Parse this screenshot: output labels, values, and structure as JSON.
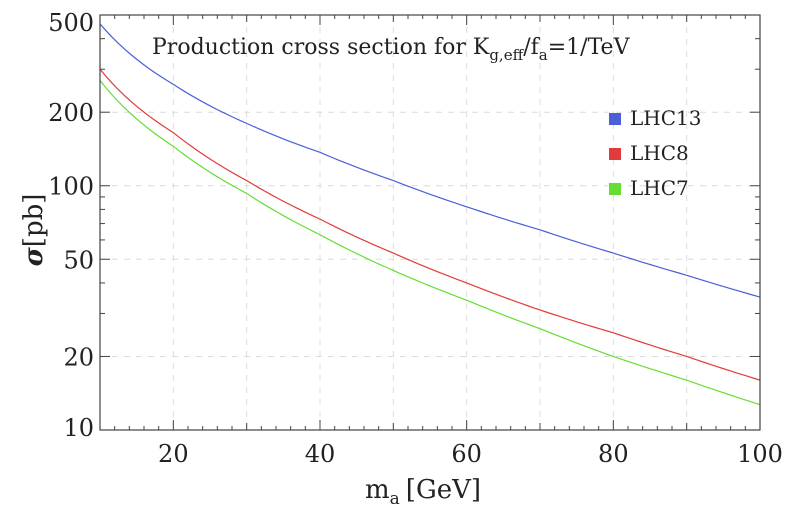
{
  "chart_data": {
    "type": "line",
    "title": "Production cross section for K",
    "title_sub": "g,eff",
    "title_mid": "/f",
    "title_sub2": "a",
    "title_end": "=1/TeV",
    "xlabel": "m",
    "xlabel_sub": "a",
    "xlabel_unit": "[GeV]",
    "ylabel_symbol": "σ",
    "ylabel_unit": "[pb]",
    "xlim": [
      10,
      100
    ],
    "ylim": [
      10,
      500
    ],
    "yscale": "log",
    "grid": true,
    "legend_position": "right",
    "x_ticks": [
      "20",
      "40",
      "60",
      "80",
      "100"
    ],
    "y_ticks": [
      "10",
      "20",
      "50",
      "100",
      "200",
      "500"
    ],
    "x": [
      10,
      20,
      30,
      40,
      50,
      60,
      70,
      80,
      90,
      100
    ],
    "series": [
      {
        "name": "LHC13",
        "color": "#4a5fd8",
        "values": [
          460,
          260,
          180,
          137,
          105,
          82,
          66,
          53,
          43,
          35
        ]
      },
      {
        "name": "LHC8",
        "color": "#e23b3b",
        "values": [
          300,
          165,
          105,
          73,
          53,
          40,
          31,
          25,
          20,
          16
        ]
      },
      {
        "name": "LHC7",
        "color": "#66dd33",
        "values": [
          270,
          145,
          93,
          63,
          45,
          34,
          26,
          20,
          16,
          12.7
        ]
      }
    ]
  }
}
